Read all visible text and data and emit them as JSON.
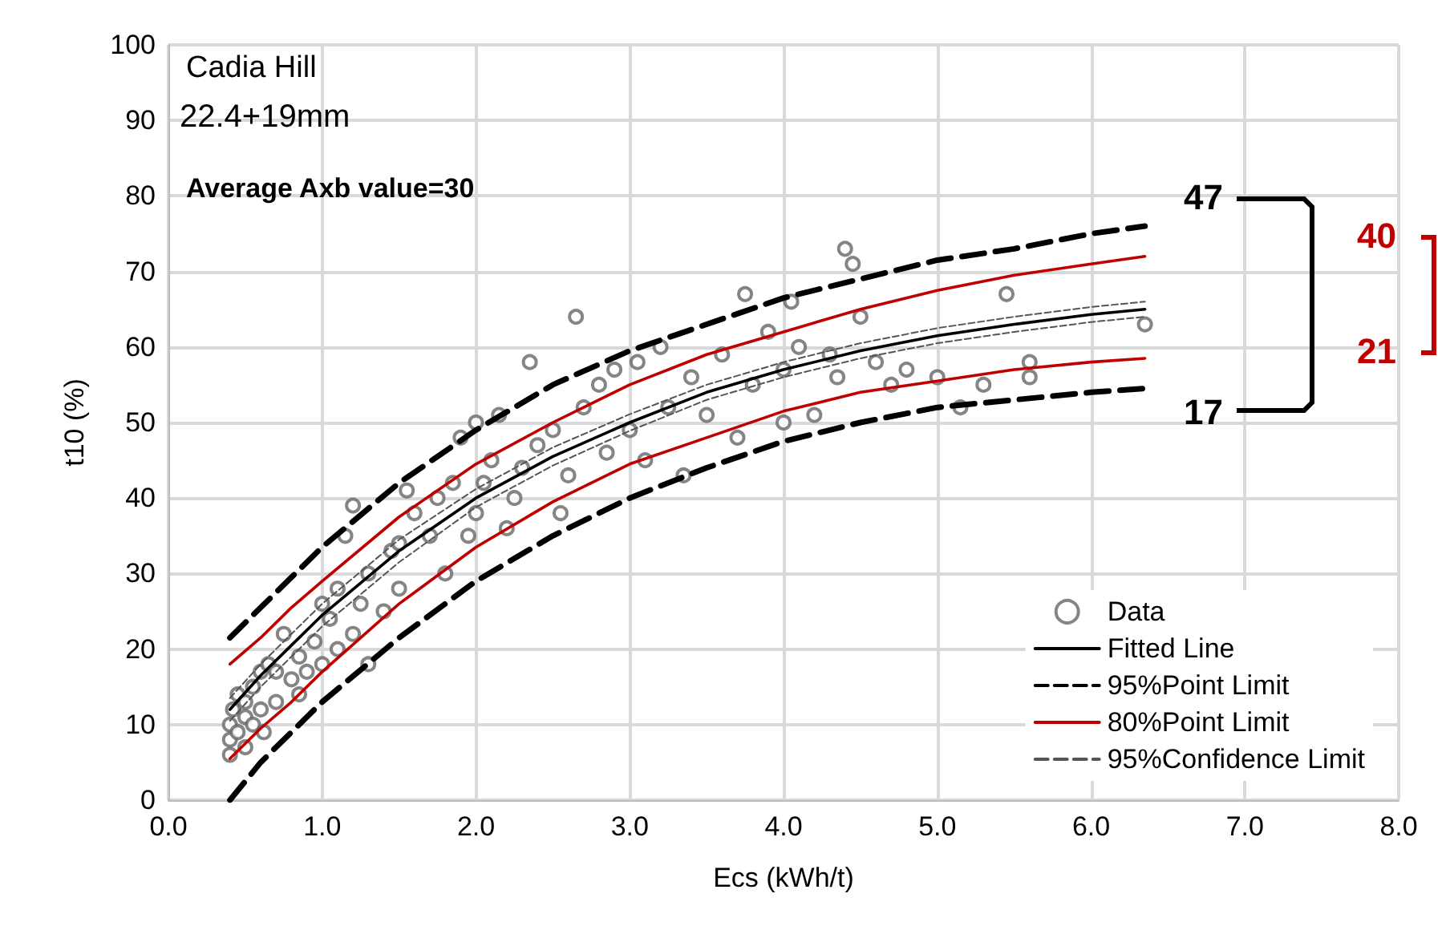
{
  "chart_data": {
    "type": "line",
    "xlabel": "Ecs (kWh/t)",
    "ylabel": "t10 (%)",
    "xlim": [
      0,
      8
    ],
    "xticks": [
      {
        "value": 0,
        "label": "0.0"
      },
      {
        "value": 1,
        "label": "1.0"
      },
      {
        "value": 2,
        "label": "2.0"
      },
      {
        "value": 3,
        "label": "3.0"
      },
      {
        "value": 4,
        "label": "4.0"
      },
      {
        "value": 5,
        "label": "5.0"
      },
      {
        "value": 6,
        "label": "6.0"
      },
      {
        "value": 7,
        "label": "7.0"
      },
      {
        "value": 8,
        "label": "8.0"
      }
    ],
    "ylim": [
      0,
      100
    ],
    "yticks": [
      0,
      10,
      20,
      30,
      40,
      50,
      60,
      70,
      80,
      90,
      100
    ],
    "grid": true,
    "legend": "bottom right",
    "annotations": [
      "Cadia Hill",
      "22.4+19mm",
      "Average Axb value=30",
      "47",
      "17",
      "40",
      "21"
    ],
    "x": [
      0.4,
      0.6,
      0.8,
      1.0,
      1.5,
      2.0,
      2.5,
      3.0,
      3.5,
      4.0,
      4.5,
      5.0,
      5.5,
      6.0,
      6.35
    ],
    "series": [
      {
        "name": "Data",
        "type": "scatter",
        "marker": "circle",
        "color": "#666666",
        "x": [
          0.4,
          0.4,
          0.4,
          0.42,
          0.45,
          0.45,
          0.5,
          0.5,
          0.5,
          0.55,
          0.55,
          0.6,
          0.6,
          0.62,
          0.65,
          0.7,
          0.7,
          0.75,
          0.8,
          0.85,
          0.85,
          0.9,
          0.95,
          1.0,
          1.0,
          1.05,
          1.1,
          1.1,
          1.15,
          1.2,
          1.2,
          1.25,
          1.3,
          1.3,
          1.4,
          1.45,
          1.5,
          1.5,
          1.55,
          1.6,
          1.7,
          1.75,
          1.8,
          1.85,
          1.9,
          1.95,
          2.0,
          2.0,
          2.05,
          2.1,
          2.15,
          2.2,
          2.25,
          2.3,
          2.35,
          2.4,
          2.5,
          2.55,
          2.6,
          2.65,
          2.7,
          2.8,
          2.85,
          2.9,
          3.0,
          3.05,
          3.1,
          3.2,
          3.25,
          3.35,
          3.4,
          3.5,
          3.6,
          3.7,
          3.75,
          3.8,
          3.9,
          4.0,
          4.0,
          4.05,
          4.1,
          4.2,
          4.3,
          4.35,
          4.4,
          4.45,
          4.5,
          4.6,
          4.7,
          4.8,
          5.0,
          5.15,
          5.3,
          5.45,
          5.6,
          5.6,
          6.35
        ],
        "values": [
          6,
          8,
          10,
          12,
          9,
          14,
          11,
          7,
          13,
          10,
          15,
          12,
          17,
          9,
          18,
          13,
          17,
          22,
          16,
          14,
          19,
          17,
          21,
          26,
          18,
          24,
          20,
          28,
          35,
          39,
          22,
          26,
          18,
          30,
          25,
          33,
          28,
          34,
          41,
          38,
          35,
          40,
          30,
          42,
          48,
          35,
          50,
          38,
          42,
          45,
          51,
          36,
          40,
          44,
          58,
          47,
          49,
          38,
          43,
          64,
          52,
          55,
          46,
          57,
          49,
          58,
          45,
          60,
          52,
          43,
          56,
          51,
          59,
          48,
          67,
          55,
          62,
          50,
          57,
          66,
          60,
          51,
          59,
          56,
          73,
          71,
          64,
          58,
          55,
          57,
          56,
          52,
          55,
          67,
          58,
          56,
          63
        ]
      },
      {
        "name": "Fitted Line",
        "color": "#000000",
        "line_style": "solid",
        "values": [
          12,
          16.5,
          20.5,
          24.5,
          33,
          40,
          45.5,
          50,
          54,
          57,
          59.5,
          61.5,
          63,
          64.3,
          65
        ]
      },
      {
        "name": "95%Point Limit",
        "color": "#000000",
        "line_style": "dashed",
        "values": [
          21.5,
          25.5,
          29.5,
          33.5,
          42,
          49,
          55,
          59.5,
          63,
          66.5,
          69,
          71.5,
          73,
          75,
          76
        ]
      },
      {
        "color": "#000000",
        "line_style": "dashed",
        "values": [
          0,
          5,
          9,
          13,
          21.5,
          29,
          35,
          40,
          44,
          47.5,
          50,
          52,
          53,
          54,
          54.5
        ]
      },
      {
        "name": "80%Point Limit",
        "color": "#c00000",
        "line_style": "solid",
        "values": [
          18,
          21.5,
          25.5,
          29,
          37.5,
          44.5,
          50,
          55,
          59,
          62,
          65,
          67.5,
          69.5,
          71,
          72
        ]
      },
      {
        "color": "#c00000",
        "line_style": "solid",
        "values": [
          5.5,
          9.5,
          13,
          17,
          26,
          33.5,
          39.5,
          44.5,
          48,
          51.5,
          54,
          55.5,
          57,
          58,
          58.5
        ]
      },
      {
        "name": "95%Confidence Limit",
        "color": "#555555",
        "line_style": "dashed",
        "values": [
          13.5,
          18,
          22,
          26,
          34.5,
          41.2,
          46.7,
          51.1,
          55,
          58,
          60.5,
          62.5,
          64,
          65.3,
          66
        ]
      },
      {
        "color": "#555555",
        "line_style": "dashed",
        "values": [
          10.5,
          15,
          19,
          23,
          31.5,
          38.8,
          44.3,
          48.9,
          53,
          56,
          58.5,
          60.5,
          62,
          63.3,
          64
        ]
      }
    ]
  }
}
